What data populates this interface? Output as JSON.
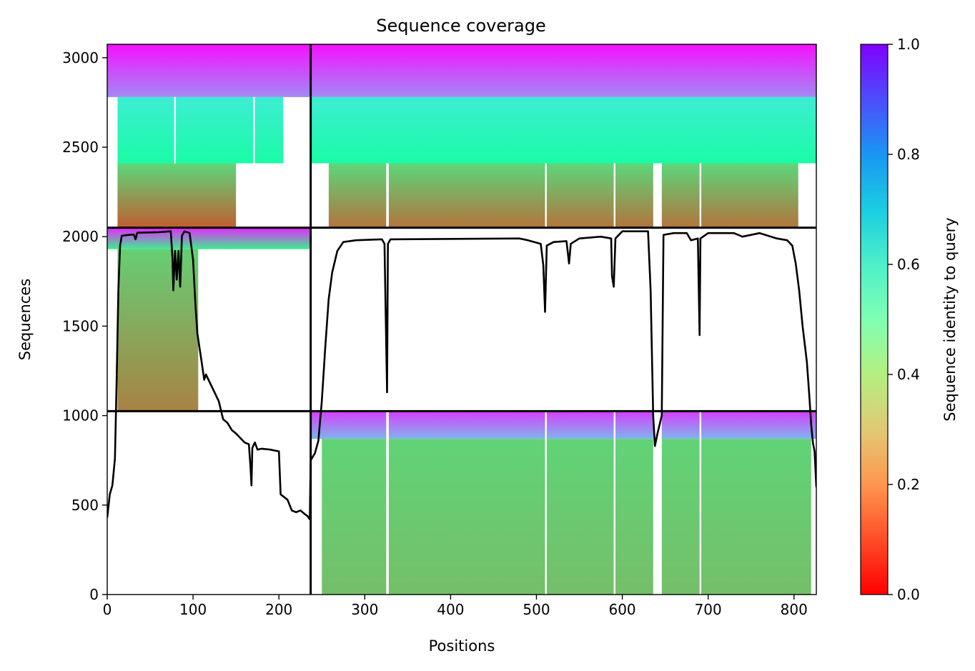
{
  "chart_data": {
    "type": "heatmap",
    "title": "Sequence coverage",
    "xlabel": "Positions",
    "ylabel": "Sequences",
    "xlim": [
      0,
      826
    ],
    "ylim": [
      0,
      3075
    ],
    "x_ticks": [
      0,
      100,
      200,
      300,
      400,
      500,
      600,
      700,
      800
    ],
    "y_ticks": [
      0,
      500,
      1000,
      1500,
      2000,
      2500,
      3000
    ],
    "colorbar": {
      "label": "Sequence identity to query",
      "colormap": "rainbow_r",
      "range": [
        0,
        1
      ],
      "ticks": [
        0.0,
        0.2,
        0.4,
        0.6,
        0.8,
        1.0
      ],
      "tick_labels": [
        "0.0",
        "0.2",
        "0.4",
        "0.6",
        "0.8",
        "1.0"
      ]
    },
    "chain_boundaries": {
      "x": [
        237
      ],
      "y": [
        1025,
        2050
      ]
    },
    "blocks": [
      {
        "name": "chain-a-paired",
        "x_range": [
          0,
          237
        ],
        "y_range": [
          2050,
          3075
        ],
        "bands": [
          {
            "y0": 2780,
            "y1": 3075,
            "identity_top": 0.98,
            "identity_bottom": 0.82,
            "x_start": 0,
            "x_end": 237
          },
          {
            "y0": 2410,
            "y1": 2780,
            "identity_top": 0.62,
            "identity_bottom": 0.45,
            "x_start": 12,
            "x_end": 205
          },
          {
            "y0": 2050,
            "y1": 2410,
            "identity_top": 0.32,
            "identity_bottom": 0.12,
            "x_start": 12,
            "x_end": 150
          }
        ]
      },
      {
        "name": "chain-b-paired",
        "x_range": [
          237,
          826
        ],
        "y_range": [
          2050,
          3075
        ],
        "bands": [
          {
            "y0": 2780,
            "y1": 3075,
            "identity_top": 0.98,
            "identity_bottom": 0.82,
            "x_start": 237,
            "x_end": 826
          },
          {
            "y0": 2410,
            "y1": 2780,
            "identity_top": 0.62,
            "identity_bottom": 0.45,
            "x_start": 237,
            "x_end": 826
          },
          {
            "y0": 2050,
            "y1": 2410,
            "identity_top": 0.32,
            "identity_bottom": 0.15,
            "x_start": 258,
            "x_end": 805
          }
        ]
      },
      {
        "name": "chain-a-unpaired",
        "x_range": [
          0,
          237
        ],
        "y_range": [
          1025,
          2050
        ],
        "bands": [
          {
            "y0": 1930,
            "y1": 2050,
            "identity_top": 0.95,
            "identity_bottom": 0.38,
            "x_start": 0,
            "x_end": 237
          },
          {
            "y0": 1025,
            "y1": 1930,
            "identity_top": 0.3,
            "identity_bottom": 0.17,
            "x_start": 12,
            "x_end": 106
          }
        ]
      },
      {
        "name": "chain-b-unpaired",
        "x_range": [
          237,
          826
        ],
        "y_range": [
          0,
          1025
        ],
        "bands": [
          {
            "y0": 870,
            "y1": 1025,
            "identity_top": 0.92,
            "identity_bottom": 0.75,
            "x_start": 237,
            "x_end": 826
          },
          {
            "y0": 0,
            "y1": 870,
            "identity_top": 0.31,
            "identity_bottom": 0.27,
            "x_start": 250,
            "x_end": 820
          }
        ]
      }
    ],
    "gap_columns": [
      {
        "x0": 636,
        "x1": 646,
        "y0": 0,
        "y1": 2410
      },
      {
        "x0": 325,
        "x1": 328,
        "y0": 0,
        "y1": 2410
      },
      {
        "x0": 510,
        "x1": 512,
        "y0": 0,
        "y1": 2410
      },
      {
        "x0": 590,
        "x1": 592,
        "y0": 0,
        "y1": 2410
      },
      {
        "x0": 690,
        "x1": 692,
        "y0": 0,
        "y1": 2410
      },
      {
        "x0": 78,
        "x1": 80,
        "y0": 2410,
        "y1": 2780
      },
      {
        "x0": 170,
        "x1": 172,
        "y0": 2410,
        "y1": 2780
      }
    ],
    "coverage_line": {
      "name": "coverage",
      "color": "#000000",
      "points": [
        [
          0,
          430
        ],
        [
          3,
          560
        ],
        [
          6,
          610
        ],
        [
          9,
          760
        ],
        [
          11,
          1200
        ],
        [
          13,
          1700
        ],
        [
          15,
          1950
        ],
        [
          17,
          2005
        ],
        [
          25,
          2010
        ],
        [
          31,
          2012
        ],
        [
          33,
          1985
        ],
        [
          35,
          2022
        ],
        [
          60,
          2025
        ],
        [
          74,
          2030
        ],
        [
          76,
          1880
        ],
        [
          77,
          1700
        ],
        [
          79,
          1920
        ],
        [
          81,
          1760
        ],
        [
          83,
          1920
        ],
        [
          85,
          1720
        ],
        [
          87,
          2005
        ],
        [
          90,
          2030
        ],
        [
          96,
          2020
        ],
        [
          100,
          1870
        ],
        [
          103,
          1600
        ],
        [
          105,
          1460
        ],
        [
          110,
          1300
        ],
        [
          113,
          1200
        ],
        [
          115,
          1230
        ],
        [
          120,
          1180
        ],
        [
          130,
          1080
        ],
        [
          135,
          980
        ],
        [
          140,
          960
        ],
        [
          145,
          920
        ],
        [
          150,
          900
        ],
        [
          160,
          850
        ],
        [
          165,
          840
        ],
        [
          167,
          700
        ],
        [
          168,
          610
        ],
        [
          169,
          820
        ],
        [
          172,
          850
        ],
        [
          175,
          810
        ],
        [
          180,
          815
        ],
        [
          190,
          810
        ],
        [
          200,
          800
        ],
        [
          202,
          560
        ],
        [
          210,
          530
        ],
        [
          215,
          470
        ],
        [
          220,
          460
        ],
        [
          225,
          470
        ],
        [
          230,
          450
        ],
        [
          233,
          440
        ],
        [
          236,
          420
        ],
        [
          237,
          750
        ],
        [
          242,
          790
        ],
        [
          246,
          860
        ],
        [
          250,
          1080
        ],
        [
          254,
          1380
        ],
        [
          258,
          1650
        ],
        [
          262,
          1800
        ],
        [
          268,
          1920
        ],
        [
          275,
          1970
        ],
        [
          290,
          1980
        ],
        [
          320,
          1985
        ],
        [
          323,
          1960
        ],
        [
          325,
          1400
        ],
        [
          326,
          1130
        ],
        [
          327,
          1960
        ],
        [
          330,
          1985
        ],
        [
          480,
          1990
        ],
        [
          490,
          1980
        ],
        [
          505,
          1960
        ],
        [
          508,
          1840
        ],
        [
          510,
          1580
        ],
        [
          512,
          1950
        ],
        [
          520,
          1970
        ],
        [
          535,
          1975
        ],
        [
          538,
          1850
        ],
        [
          540,
          1960
        ],
        [
          550,
          1990
        ],
        [
          575,
          2000
        ],
        [
          587,
          1990
        ],
        [
          588,
          1780
        ],
        [
          590,
          1720
        ],
        [
          592,
          1990
        ],
        [
          600,
          2030
        ],
        [
          630,
          2030
        ],
        [
          633,
          1700
        ],
        [
          636,
          1000
        ],
        [
          638,
          830
        ],
        [
          641,
          900
        ],
        [
          644,
          960
        ],
        [
          646,
          1000
        ],
        [
          648,
          2010
        ],
        [
          660,
          2020
        ],
        [
          675,
          2020
        ],
        [
          680,
          1980
        ],
        [
          688,
          1990
        ],
        [
          690,
          1450
        ],
        [
          691,
          1990
        ],
        [
          700,
          2020
        ],
        [
          730,
          2020
        ],
        [
          740,
          2000
        ],
        [
          760,
          2020
        ],
        [
          780,
          1990
        ],
        [
          792,
          1980
        ],
        [
          798,
          1950
        ],
        [
          802,
          1850
        ],
        [
          806,
          1700
        ],
        [
          810,
          1500
        ],
        [
          815,
          1300
        ],
        [
          818,
          1100
        ],
        [
          820,
          950
        ],
        [
          822,
          850
        ],
        [
          824,
          800
        ],
        [
          826,
          600
        ]
      ]
    }
  }
}
